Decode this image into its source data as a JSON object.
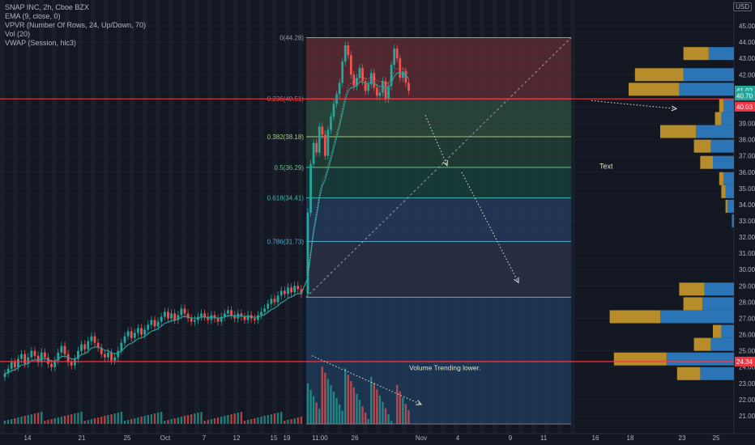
{
  "legend": {
    "symbol": "SNAP INC, 2h, Cboe BZX",
    "ema": "EMA (9, close, 0)",
    "vpvr": "VPVR (Number Of Rows, 24, Up/Down, 70)",
    "vol": "Vol (20)",
    "vwap": "VWAP (Session, hlc3)"
  },
  "currency_button": "USD",
  "colors": {
    "background": "#131722",
    "up": "#26a69a",
    "down": "#ef5350",
    "ema": "#2a9d9a",
    "vwap_dots": "#e0e0c0",
    "vpvr_up": "#2f80c8",
    "vpvr_down": "#c99a2b",
    "red_line": "#f23645",
    "text_label": "#e0e3c4"
  },
  "chart_data": {
    "type": "candlestick",
    "y_axis": {
      "min": 20.5,
      "max": 45.5,
      "ticks": [
        "21.00",
        "22.00",
        "23.00",
        "24.00",
        "25.00",
        "26.00",
        "27.00",
        "28.00",
        "29.00",
        "30.00",
        "31.00",
        "32.00",
        "33.00",
        "34.00",
        "35.00",
        "36.00",
        "37.00",
        "38.00",
        "39.00",
        "40.00",
        "41.00",
        "42.00",
        "43.00",
        "44.00",
        "45.00"
      ]
    },
    "x_axis": {
      "ticks": [
        "14",
        "21",
        "25",
        "Oct",
        "7",
        "12",
        "15",
        "19",
        "11:00",
        "26",
        "Nov",
        "4",
        "9",
        "11",
        "16",
        "18",
        "23",
        "25"
      ]
    },
    "price_labels": [
      {
        "value": 40.03,
        "text": "40.03",
        "color": "#f23645"
      },
      {
        "value": 24.34,
        "text": "24.34",
        "color": "#f23645"
      },
      {
        "value": 41.02,
        "text": "41.02",
        "color": "#26a69a"
      },
      {
        "value": 40.7,
        "text": "40.70",
        "color": "#26a69a"
      }
    ],
    "horizontal_lines": [
      40.51,
      24.34
    ],
    "fib_levels": [
      {
        "label": "0(44.28)",
        "value": 44.28
      },
      {
        "label": "0.236(40.51)",
        "value": 40.51
      },
      {
        "label": "0.382(38.18)",
        "value": 38.18
      },
      {
        "label": "0.5(36.29)",
        "value": 36.29
      },
      {
        "label": "0.618(34.41)",
        "value": 34.41
      },
      {
        "label": "0.786(31.73)",
        "value": 31.73
      },
      {
        "label": "",
        "value": 28.3
      },
      {
        "label": "",
        "value": 20.5
      }
    ],
    "annotations": [
      {
        "text": "Text"
      },
      {
        "text": "Volume Trending lower."
      }
    ],
    "volume_profile": [
      {
        "price": 43.3,
        "up": 1.2,
        "down": 1.2
      },
      {
        "price": 42.0,
        "up": 2.4,
        "down": 2.3
      },
      {
        "price": 41.1,
        "up": 2.6,
        "down": 2.4
      },
      {
        "price": 40.1,
        "up": 0.5,
        "down": 0.2
      },
      {
        "price": 39.3,
        "up": 0.6,
        "down": 0.3
      },
      {
        "price": 38.5,
        "up": 1.8,
        "down": 1.7
      },
      {
        "price": 37.6,
        "up": 1.1,
        "down": 0.8
      },
      {
        "price": 36.6,
        "up": 1.0,
        "down": 0.6
      },
      {
        "price": 35.6,
        "up": 0.5,
        "down": 0.2
      },
      {
        "price": 34.8,
        "up": 0.4,
        "down": 0.2
      },
      {
        "price": 33.9,
        "up": 0.3,
        "down": 0.1
      },
      {
        "price": 33.0,
        "up": 0.1,
        "down": 0.0
      },
      {
        "price": 28.8,
        "up": 1.4,
        "down": 1.2
      },
      {
        "price": 27.9,
        "up": 1.5,
        "down": 0.9
      },
      {
        "price": 27.1,
        "up": 3.5,
        "down": 2.4
      },
      {
        "price": 26.2,
        "up": 0.6,
        "down": 0.4
      },
      {
        "price": 25.4,
        "up": 1.1,
        "down": 0.8
      },
      {
        "price": 24.5,
        "up": 3.2,
        "down": 2.5
      },
      {
        "price": 23.6,
        "up": 1.6,
        "down": 1.1
      }
    ],
    "close_series": [
      23.6,
      23.9,
      24.3,
      24.0,
      24.5,
      24.8,
      24.2,
      24.6,
      25.0,
      24.7,
      24.3,
      24.9,
      24.6,
      24.2,
      24.0,
      24.4,
      24.9,
      25.3,
      24.8,
      24.3,
      24.1,
      24.5,
      25.0,
      25.4,
      25.1,
      25.6,
      25.9,
      25.5,
      25.2,
      24.8,
      24.6,
      24.9,
      24.4,
      24.6,
      25.0,
      25.5,
      25.9,
      26.2,
      25.8,
      26.1,
      26.4,
      26.0,
      26.3,
      26.6,
      26.9,
      26.5,
      26.8,
      27.1,
      27.4,
      27.0,
      27.3,
      26.9,
      27.2,
      27.6,
      27.3,
      27.0,
      26.8,
      26.9,
      27.1,
      27.3,
      27.1,
      26.9,
      27.2,
      27.0,
      26.8,
      27.1,
      27.3,
      27.5,
      27.2,
      27.0,
      27.3,
      27.1,
      26.9,
      27.2,
      27.0,
      26.9,
      27.2,
      27.4,
      27.6,
      27.9,
      28.2,
      28.0,
      28.4,
      28.7,
      28.5,
      28.9,
      28.6,
      29.0,
      28.8,
      28.5,
      33.5,
      36.5,
      37.8,
      37.2,
      38.8,
      38.3,
      37.0,
      38.6,
      39.4,
      40.2,
      40.8,
      41.5,
      42.8,
      43.8,
      43.2,
      42.0,
      41.3,
      41.8,
      42.4,
      41.6,
      41.0,
      41.4,
      42.1,
      41.2,
      40.7,
      40.9,
      41.6,
      40.5,
      41.3,
      42.6,
      43.6,
      43.0,
      41.8,
      42.2,
      41.5,
      41.0
    ]
  }
}
